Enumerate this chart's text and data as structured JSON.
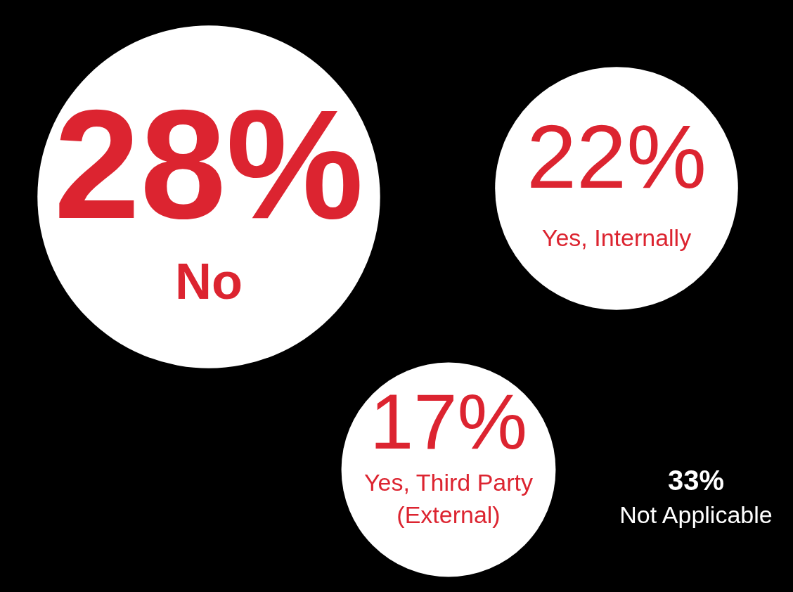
{
  "chart_data": {
    "type": "other",
    "categories": [
      "No",
      "Yes, Internally",
      "Yes, Third Party (External)",
      "Not Applicable"
    ],
    "values": [
      28,
      22,
      17,
      33
    ],
    "value_labels": [
      "28%",
      "22%",
      "17%",
      "33%"
    ],
    "color": "#dc2430",
    "colors": [
      "#ffffff",
      "#ffffff",
      "#ffffff",
      "#000000"
    ]
  }
}
